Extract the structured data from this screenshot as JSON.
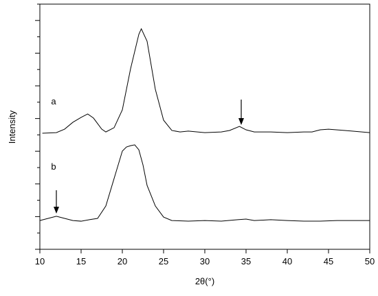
{
  "chart_data": {
    "type": "line",
    "x_label": "2θ(°)",
    "y_label": "Intensity",
    "xlim": [
      10,
      50
    ],
    "xticks": [
      10,
      15,
      20,
      25,
      30,
      35,
      40,
      45,
      50
    ],
    "ylim": [
      0,
      15
    ],
    "yticks": [
      0,
      1,
      2,
      3,
      4,
      5,
      6,
      7,
      8,
      9,
      10,
      11,
      12,
      13,
      14,
      15
    ],
    "ytick_labels": false,
    "annotations": [
      "a",
      "b"
    ],
    "series": [
      {
        "name": "a",
        "color": "#000000",
        "x": [
          10.3,
          12,
          13,
          14,
          15,
          15.8,
          16.5,
          17.5,
          18,
          19,
          20,
          21,
          22,
          22.3,
          23,
          24,
          25,
          26,
          27,
          28,
          30,
          32,
          33,
          34.2,
          35,
          36,
          38,
          40,
          42,
          43,
          44,
          45,
          47,
          50
        ],
        "values": [
          7.1,
          7.14,
          7.35,
          7.77,
          8.07,
          8.28,
          8.03,
          7.35,
          7.18,
          7.44,
          8.53,
          11.05,
          13.15,
          13.49,
          12.73,
          9.79,
          7.9,
          7.27,
          7.18,
          7.23,
          7.14,
          7.18,
          7.27,
          7.52,
          7.31,
          7.18,
          7.18,
          7.14,
          7.18,
          7.18,
          7.31,
          7.35,
          7.27,
          7.14
        ]
      },
      {
        "name": "b",
        "color": "#000000",
        "x": [
          10,
          11,
          12,
          13,
          14,
          15,
          16,
          17,
          18,
          19,
          20,
          20.5,
          21,
          21.5,
          22,
          22.5,
          23,
          24,
          25,
          26,
          28,
          30,
          32,
          34,
          35,
          36,
          38,
          40,
          42,
          44,
          46,
          50
        ],
        "values": [
          1.76,
          1.89,
          2.02,
          1.89,
          1.76,
          1.72,
          1.81,
          1.89,
          2.65,
          4.33,
          6.01,
          6.26,
          6.34,
          6.39,
          6.09,
          5.17,
          3.91,
          2.65,
          1.97,
          1.76,
          1.72,
          1.76,
          1.72,
          1.81,
          1.85,
          1.76,
          1.81,
          1.76,
          1.72,
          1.72,
          1.76,
          1.76
        ]
      }
    ]
  }
}
